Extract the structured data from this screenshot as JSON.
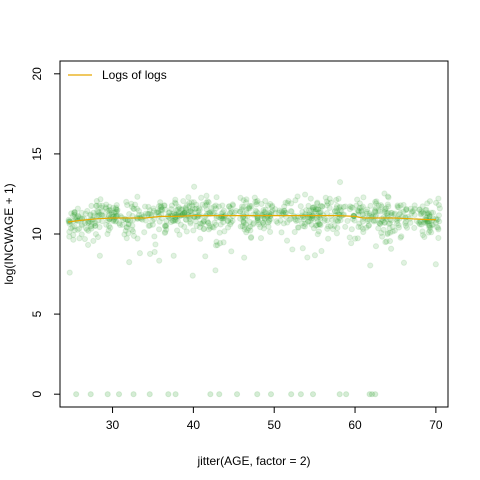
{
  "chart_data": {
    "type": "scatter",
    "title": "",
    "xlabel": "jitter(AGE, factor = 2)",
    "ylabel": "log(INCWAGE + 1)",
    "xlim": [
      23.5,
      71.5
    ],
    "ylim": [
      -0.8,
      20.8
    ],
    "x_ticks": [
      30,
      40,
      50,
      60,
      70
    ],
    "y_ticks": [
      0,
      5,
      10,
      15,
      20
    ],
    "grid": false,
    "legend": {
      "position": "top-left",
      "entries": [
        {
          "label": "Logs of logs",
          "color": "#e6a800"
        }
      ]
    },
    "point_color": "#2ca02c",
    "point_opacity": 0.15,
    "zero_points_x": [
      25.5,
      27.3,
      29.4,
      30.8,
      32.6,
      34.6,
      36.9,
      37.8,
      42.1,
      43.2,
      45.4,
      47.9,
      49.6,
      52.1,
      53.3,
      54.8,
      58.1,
      58.9,
      61.8,
      62.1,
      62.5
    ],
    "series": [
      {
        "name": "Logs of logs",
        "color": "#e6a800",
        "x": [
          24.5,
          26,
          28,
          30,
          32,
          34,
          36,
          38,
          40,
          42,
          44,
          46,
          48,
          50,
          52,
          54,
          56,
          58,
          60,
          61,
          63,
          65,
          67,
          69,
          70
        ],
        "y": [
          10.75,
          10.85,
          10.95,
          11.0,
          11.0,
          11.0,
          11.1,
          11.1,
          11.15,
          11.15,
          11.15,
          11.15,
          11.15,
          11.15,
          11.15,
          11.15,
          11.15,
          11.15,
          11.1,
          11.0,
          11.0,
          11.0,
          10.95,
          10.9,
          10.9
        ]
      }
    ]
  }
}
